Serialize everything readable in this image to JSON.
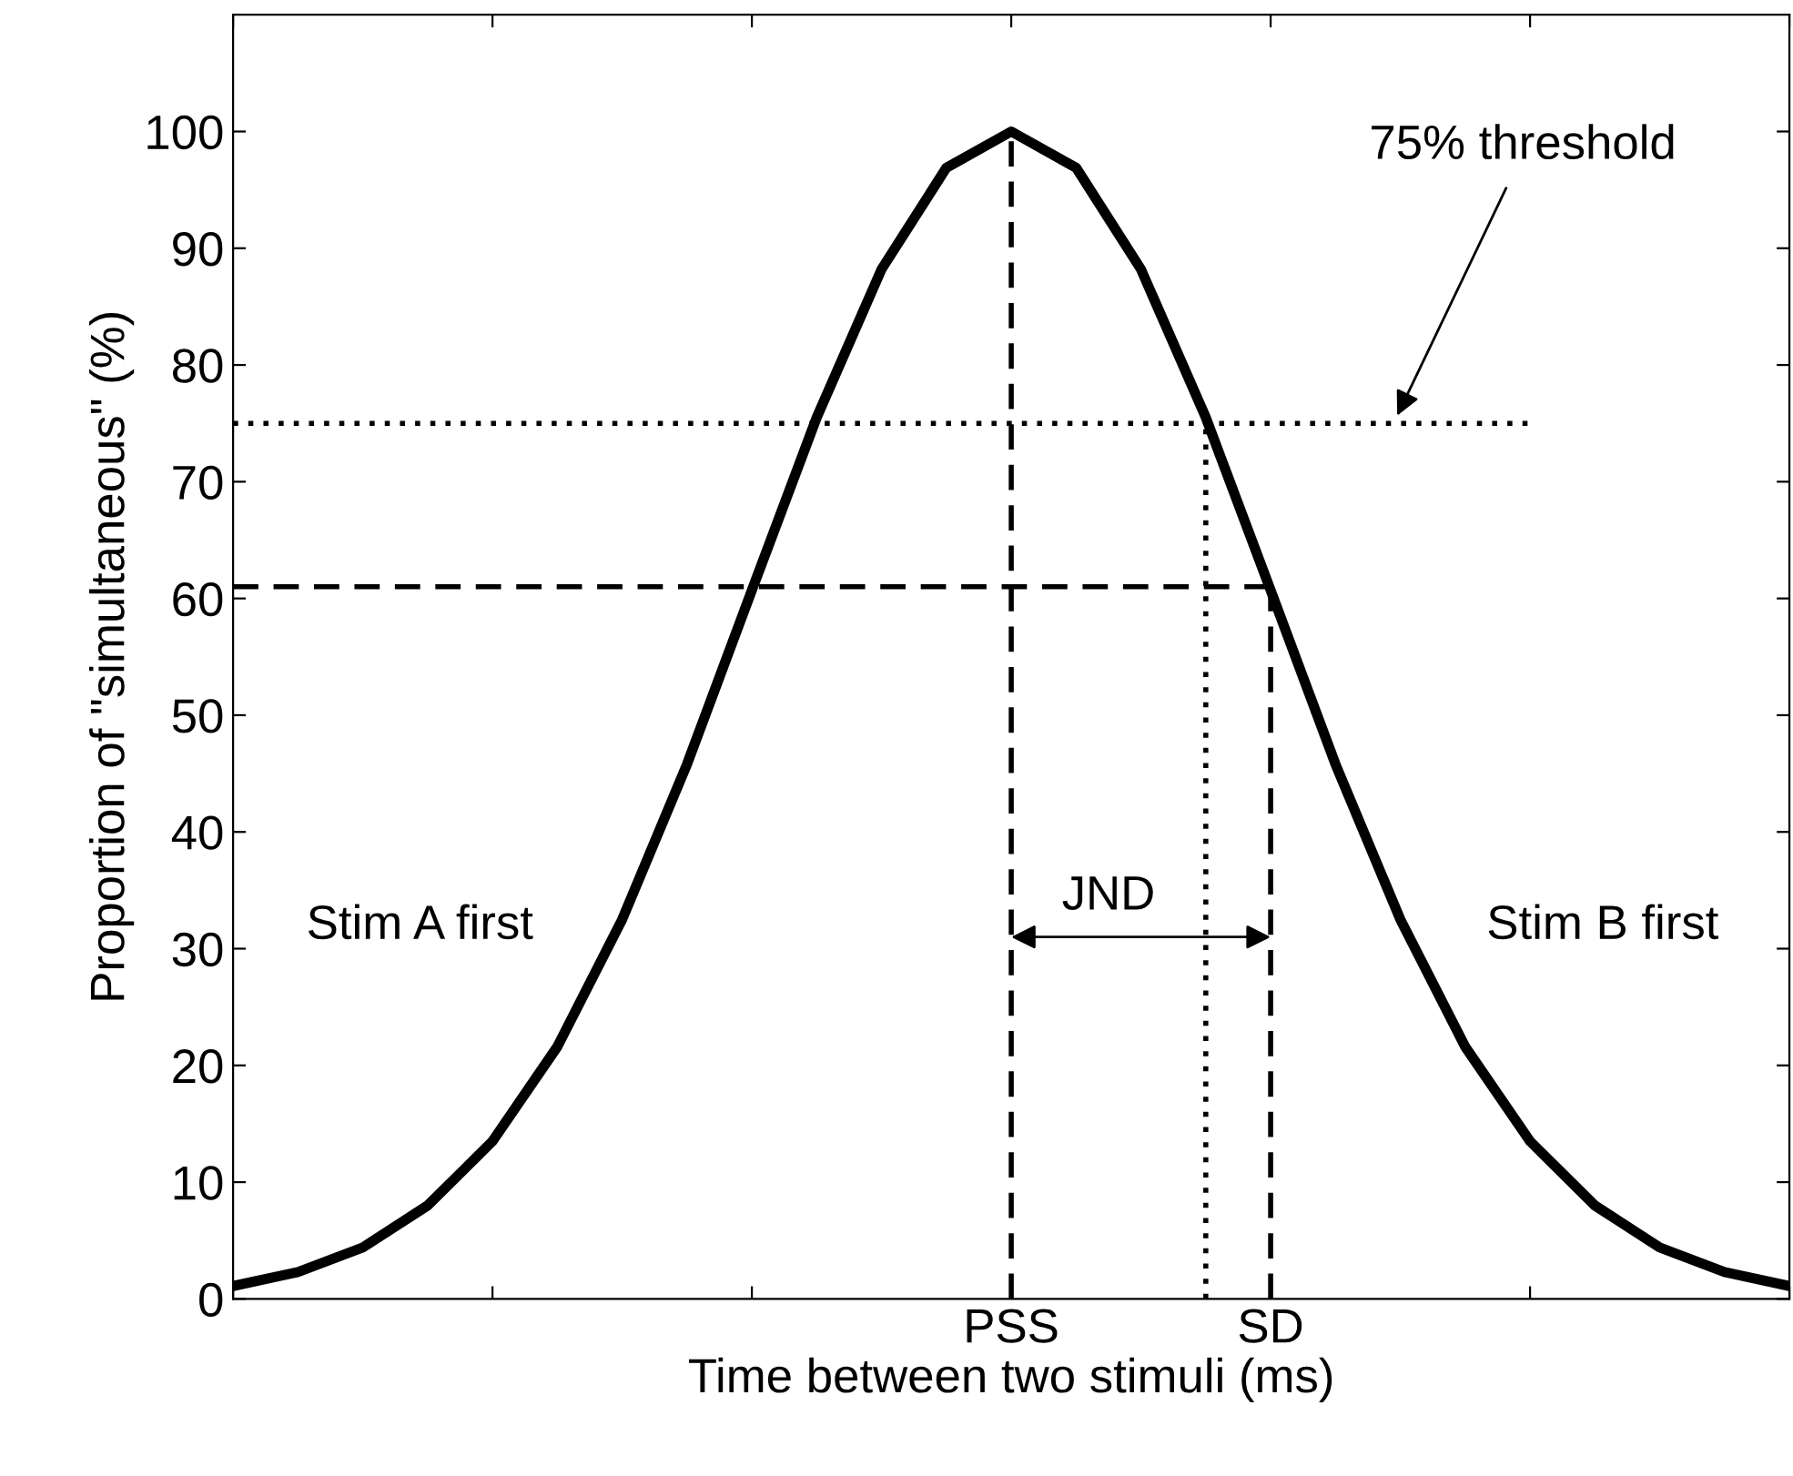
{
  "chart_data": {
    "type": "line",
    "xlabel": "Time between two stimuli (ms)",
    "ylabel": "Proportion of \"simultaneous\" (%)",
    "categories": [
      null,
      null,
      null,
      null,
      null,
      null,
      null,
      null,
      null,
      null,
      null,
      null,
      "PSS",
      null,
      null,
      null,
      "SD",
      null,
      null,
      null,
      null,
      null,
      null,
      null,
      null
    ],
    "ylim": [
      0,
      110
    ],
    "yticks": [
      0,
      10,
      20,
      30,
      40,
      50,
      60,
      70,
      80,
      90,
      100
    ],
    "marker": "none",
    "series": [
      {
        "color": "#000000",
        "line_style": "solid",
        "values": [
          1.1,
          2.3,
          4.4,
          8,
          13.5,
          21.6,
          32.5,
          45.8,
          60.7,
          75.5,
          88.2,
          96.9,
          100,
          96.9,
          88.2,
          75.5,
          60.7,
          45.8,
          32.5,
          21.6,
          13.5,
          8,
          4.4,
          2.3,
          1.1
        ]
      },
      {
        "color": "#000000",
        "line_style": "dotted",
        "values": [
          75,
          75,
          75,
          75,
          75,
          75,
          75,
          75,
          75,
          75,
          75,
          75,
          75,
          75,
          75,
          75,
          75,
          75,
          75,
          75,
          75,
          null,
          null,
          null,
          null
        ]
      },
      {
        "color": "#000000",
        "line_style": "dashed",
        "values": [
          61,
          61,
          61,
          61,
          61,
          61,
          61,
          61,
          61,
          61,
          61,
          61,
          61,
          61,
          61,
          61,
          61,
          null,
          null,
          null,
          null,
          null,
          null,
          null,
          null
        ]
      }
    ],
    "ref_lines": [
      {
        "axis": "x",
        "value": "PSS",
        "line_style": "dashed",
        "color": "#000000"
      },
      {
        "axis": "x",
        "value": "SD",
        "line_style": "dashed",
        "color": "#000000"
      }
    ],
    "annotations": [
      "75% threshold",
      {
        "text": "JND",
        "x": "PSS",
        "y": 31
      },
      "Stim A first",
      "Stim B first"
    ]
  }
}
